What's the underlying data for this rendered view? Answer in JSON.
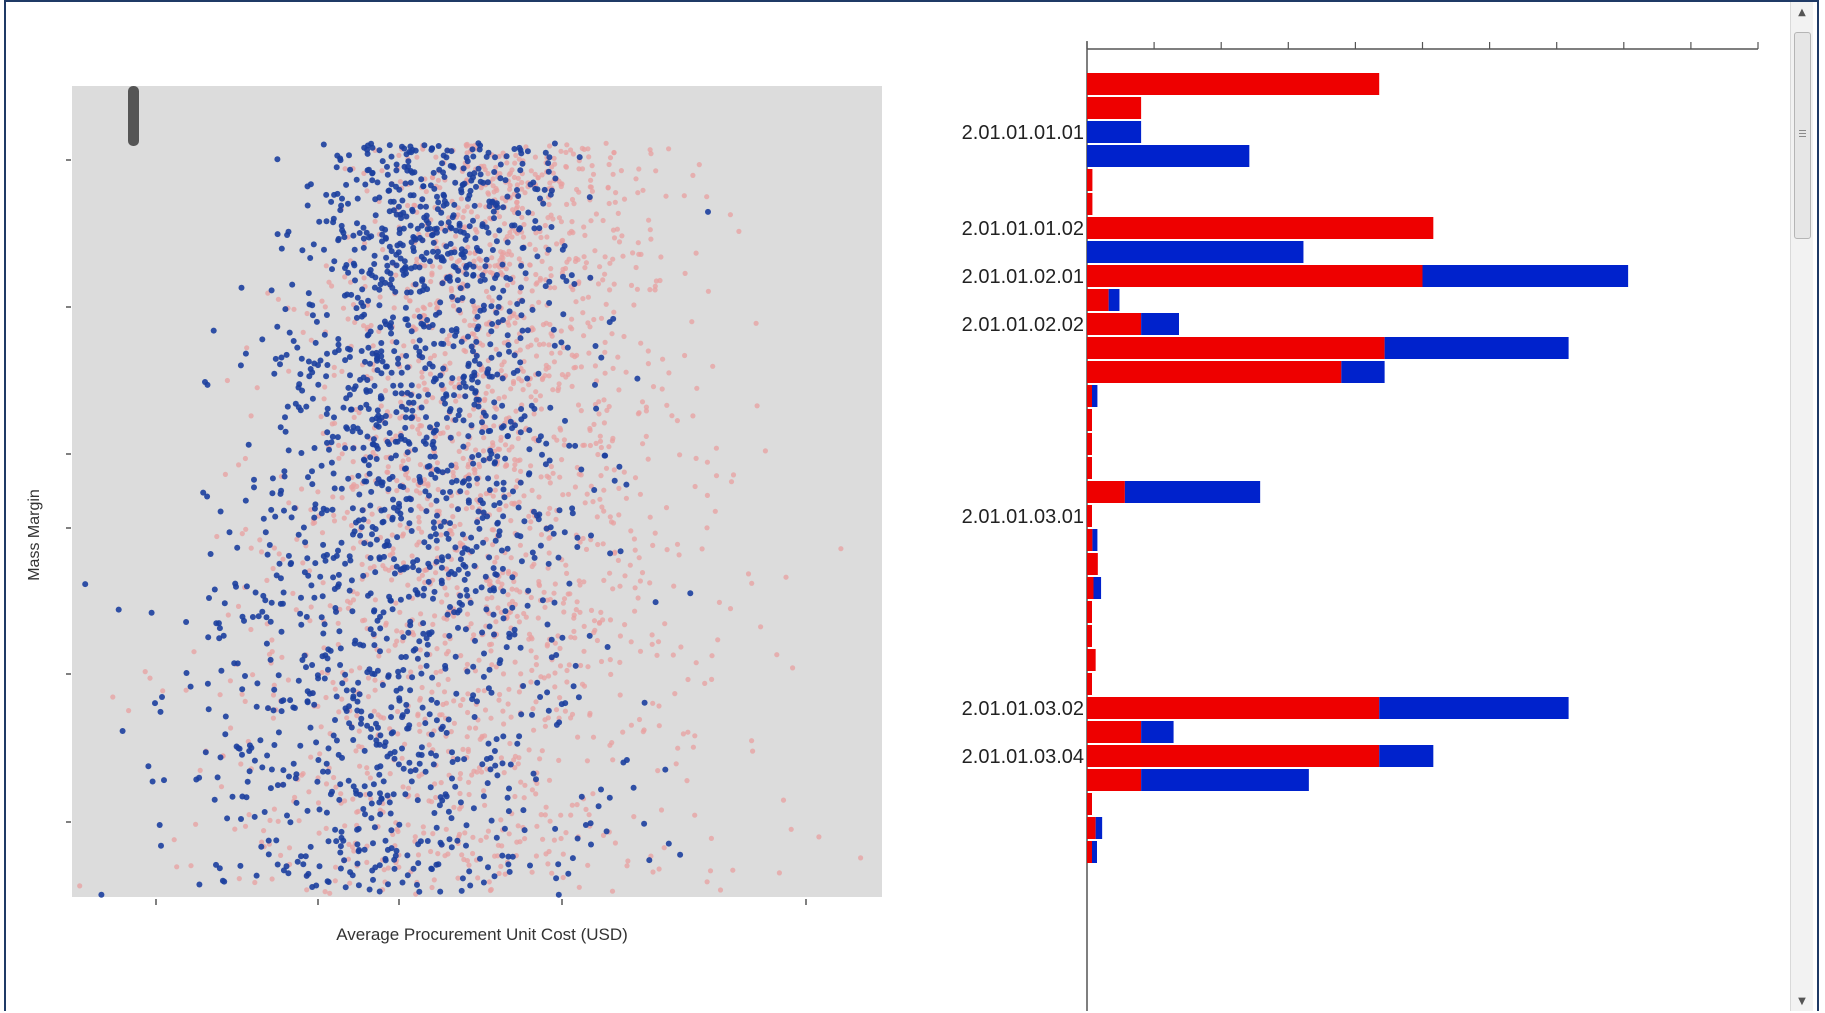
{
  "chart_data": [
    {
      "type": "scatter",
      "title": "",
      "xlabel": "Average Procurement Unit Cost (USD)",
      "ylabel": "Mass Margin",
      "x_tick_count": 6,
      "y_tick_count": 6,
      "tick_labels_shown": false,
      "background": "#dcdcdc",
      "grid": false,
      "note": "Two overlapping point clouds, several thousand points each; values are unlabeled on the axes.",
      "series": [
        {
          "color": "#1c3f9e",
          "approx_points": 1700
        },
        {
          "color": "#e8a0a0",
          "approx_points": 1900
        }
      ]
    },
    {
      "type": "bar",
      "orientation": "horizontal",
      "stacked": true,
      "title": "",
      "x_tick_labels_shown": false,
      "series_colors": [
        "#ee0000",
        "#0022cc"
      ],
      "rows": [
        {
          "label": "",
          "values": [
            27,
            0
          ]
        },
        {
          "label": "",
          "values": [
            5,
            0
          ]
        },
        {
          "label": "2.01.01.01.01",
          "values": [
            0,
            5
          ]
        },
        {
          "label": "",
          "values": [
            0,
            15
          ]
        },
        {
          "label": "",
          "values": [
            0.5,
            0
          ]
        },
        {
          "label": "",
          "values": [
            0.5,
            0
          ]
        },
        {
          "label": "2.01.01.01.02",
          "values": [
            32,
            0
          ]
        },
        {
          "label": "",
          "values": [
            0,
            20
          ]
        },
        {
          "label": "2.01.01.02.01",
          "values": [
            31,
            19
          ]
        },
        {
          "label": "",
          "values": [
            2,
            1
          ]
        },
        {
          "label": "2.01.01.02.02",
          "values": [
            5,
            3.5
          ]
        },
        {
          "label": "",
          "values": [
            27.5,
            17
          ]
        },
        {
          "label": "",
          "values": [
            23.5,
            4
          ]
        },
        {
          "label": "",
          "values": [
            0.3,
            0.5
          ]
        },
        {
          "label": "",
          "values": [
            0.4,
            0
          ]
        },
        {
          "label": "",
          "values": [
            0.2,
            0
          ]
        },
        {
          "label": "",
          "values": [
            0.4,
            0
          ]
        },
        {
          "label": "",
          "values": [
            3.5,
            12.5
          ]
        },
        {
          "label": "2.01.01.03.01",
          "values": [
            0.4,
            0
          ]
        },
        {
          "label": "",
          "values": [
            0.5,
            0.3
          ]
        },
        {
          "label": "",
          "values": [
            1.0,
            0
          ]
        },
        {
          "label": "",
          "values": [
            0.6,
            0.7
          ]
        },
        {
          "label": "",
          "values": [
            0.4,
            0
          ]
        },
        {
          "label": "",
          "values": [
            0.4,
            0
          ]
        },
        {
          "label": "",
          "values": [
            0.8,
            0
          ]
        },
        {
          "label": "",
          "values": [
            0.4,
            0
          ]
        },
        {
          "label": "2.01.01.03.02",
          "values": [
            27,
            17.5
          ]
        },
        {
          "label": "",
          "values": [
            5,
            3
          ]
        },
        {
          "label": "2.01.01.03.04",
          "values": [
            27,
            5
          ]
        },
        {
          "label": "",
          "values": [
            5,
            15.5
          ]
        },
        {
          "label": "",
          "values": [
            0.4,
            0
          ]
        },
        {
          "label": "",
          "values": [
            0.8,
            0.6
          ]
        },
        {
          "label": "",
          "values": [
            0.4,
            0.4
          ]
        }
      ],
      "x_tick_count": 10,
      "xlim": [
        0,
        62
      ]
    }
  ]
}
